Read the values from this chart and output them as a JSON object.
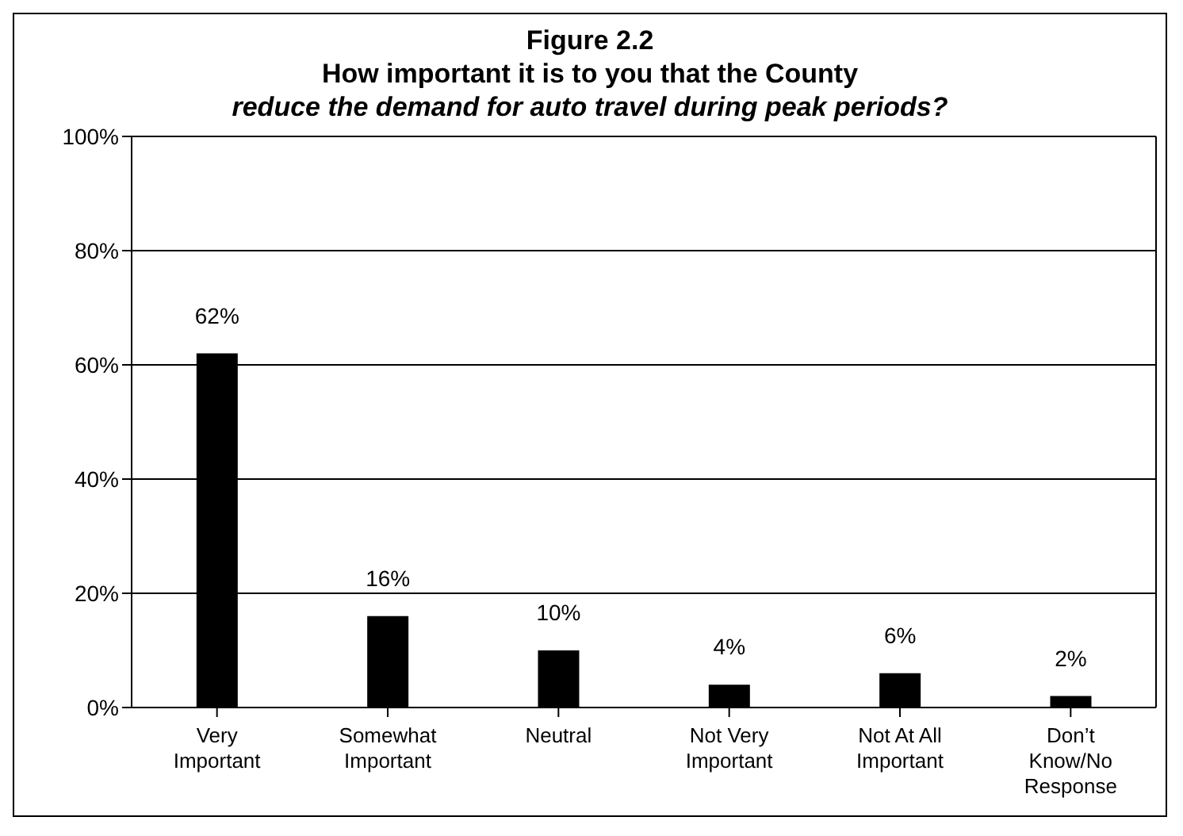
{
  "chart_data": {
    "type": "bar",
    "title": "Figure 2.2\nHow important it is to you that the County",
    "subtitle": "reduce the demand for auto travel during peak periods?",
    "categories": [
      "Very Important",
      "Somewhat Important",
      "Neutral",
      "Not Very Important",
      "Not At All Important",
      "Don’t Know/No Response"
    ],
    "values": [
      62,
      16,
      10,
      4,
      6,
      2
    ],
    "color": "#000000",
    "value_labels": [
      "62%",
      "16%",
      "10%",
      "4%",
      "6%",
      "2%"
    ],
    "ylim": [
      0,
      100
    ],
    "yticks": [
      {
        "value": 0,
        "label": "0%"
      },
      {
        "value": 20,
        "label": "20%"
      },
      {
        "value": 40,
        "label": "40%"
      },
      {
        "value": 60,
        "label": "60%"
      },
      {
        "value": 80,
        "label": "80%"
      },
      {
        "value": 100,
        "label": "100%"
      }
    ],
    "grid": "y"
  }
}
